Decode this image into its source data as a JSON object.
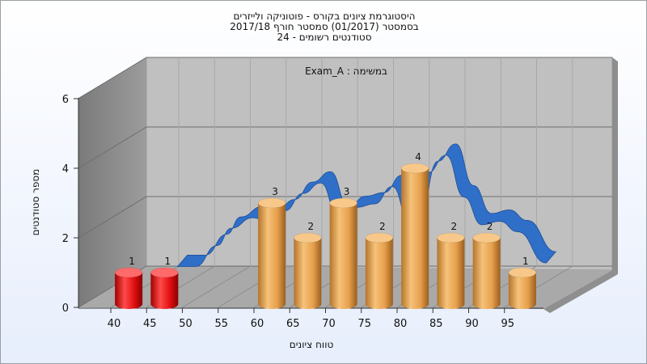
{
  "titles": [
    "היסטוגרמת ציונים בקורס - פוטוניקה ולייזרים",
    "בסמסטר (01/2017) סמסטר חורף 2017/18",
    "סטודנטים רשומים - 24"
  ],
  "colors": {
    "bar_low": "#e01010",
    "bar_normal": "#e9a449",
    "curve": "#2f6fc8",
    "wall_back": "#c0c0c0",
    "wall_side": "#8a8a8a",
    "floor": "#a9a9a9"
  },
  "chart_data": {
    "type": "bar",
    "title": "",
    "inner_label": "Exam_A : במשימה",
    "xlabel": "טווח ציונים",
    "ylabel": "מספר סטודנטים",
    "x_ticks": [
      "40",
      "45",
      "50",
      "55",
      "60",
      "65",
      "70",
      "75",
      "80",
      "85",
      "90",
      "95"
    ],
    "ylim": [
      0,
      6
    ],
    "y_ticks": [
      "0",
      "2",
      "4",
      "6"
    ],
    "bars": [
      {
        "x": 42.5,
        "value": 1,
        "label": "1",
        "color": "low"
      },
      {
        "x": 47.5,
        "value": 1,
        "label": "1",
        "color": "low"
      },
      {
        "x": 62.5,
        "value": 3,
        "label": "3",
        "color": "normal"
      },
      {
        "x": 67.5,
        "value": 2,
        "label": "2",
        "color": "normal"
      },
      {
        "x": 72.5,
        "value": 3,
        "label": "3",
        "color": "normal"
      },
      {
        "x": 77.5,
        "value": 2,
        "label": "2",
        "color": "normal"
      },
      {
        "x": 82.5,
        "value": 4,
        "label": "4",
        "color": "normal"
      },
      {
        "x": 87.5,
        "value": 2,
        "label": "2",
        "color": "normal"
      },
      {
        "x": 92.5,
        "value": 2,
        "label": "2",
        "color": "normal"
      },
      {
        "x": 97.5,
        "value": 1,
        "label": "1",
        "color": "normal"
      }
    ],
    "trend": {
      "x": [
        47.5,
        50,
        53,
        55,
        58,
        60,
        62.5,
        65,
        67.5,
        70,
        72.5,
        75,
        77.5,
        80,
        82.5,
        85,
        87.5,
        90,
        92.5,
        95,
        99
      ],
      "y": [
        1.5,
        1.5,
        2.1,
        2.6,
        2.9,
        2.8,
        3.1,
        3.6,
        3.9,
        2.9,
        3.2,
        3.3,
        3.8,
        2.7,
        4.2,
        4.7,
        3.5,
        2.7,
        2.8,
        2.5,
        1.6
      ]
    }
  }
}
